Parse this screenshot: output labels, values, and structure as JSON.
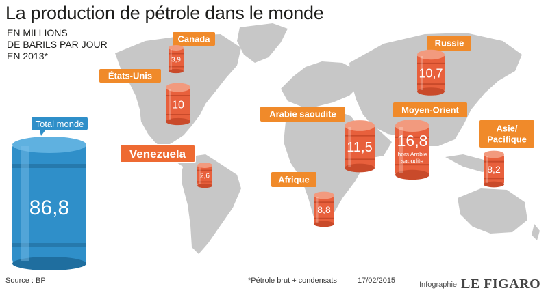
{
  "title": "La production de pétrole dans le monde",
  "subtitle": "EN MILLIONS\nDE BARILS PAR JOUR\nEN 2013*",
  "footer": {
    "source": "Source : BP",
    "note": "*Pétrole brut + condensats",
    "date": "17/02/2015",
    "credit": "Infographie",
    "brand": "LE FIGARO"
  },
  "colors": {
    "barrel_orange": "#e8603c",
    "label_orange": "#f08a2a",
    "total_blue": "#2f8fc9",
    "map_gray": "#c7c7c7",
    "venezuela_box": "#ee6a32"
  },
  "chart_data": {
    "type": "table",
    "title": "La production de pétrole dans le monde",
    "unit": "EN MILLIONS DE BARILS PAR JOUR EN 2013*",
    "total": {
      "label": "Total monde",
      "value": 86.8,
      "display": "86,8"
    },
    "regions": [
      {
        "name": "Canada",
        "value": 3.9,
        "display": "3,9"
      },
      {
        "name": "États-Unis",
        "value": 10,
        "display": "10"
      },
      {
        "name": "Venezuela",
        "value": 2.6,
        "display": "2,6"
      },
      {
        "name": "Afrique",
        "value": 8.8,
        "display": "8,8"
      },
      {
        "name": "Arabie saoudite",
        "value": 11.5,
        "display": "11,5"
      },
      {
        "name": "Moyen-Orient",
        "value": 16.8,
        "display": "16,8",
        "note": "hors Arabie saoudite"
      },
      {
        "name": "Russie",
        "value": 10.7,
        "display": "10,7"
      },
      {
        "name": "Asie/\nPacifique",
        "value": 8.2,
        "display": "8,2"
      }
    ]
  }
}
